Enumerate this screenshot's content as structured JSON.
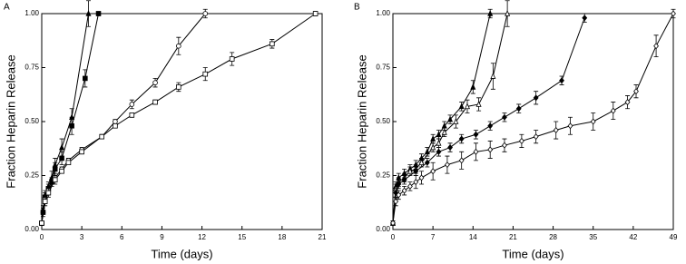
{
  "chart_data": [
    {
      "type": "line",
      "panel_label": "A",
      "x_label": "Time (days)",
      "y_label": "Fraction Heparin Release",
      "xlim": [
        0,
        21
      ],
      "xticks": [
        0,
        3,
        6,
        9,
        12,
        15,
        18,
        21
      ],
      "ylim": [
        0,
        1
      ],
      "yticks": [
        {
          "value": 0,
          "label": "0.00"
        },
        {
          "value": 0.25,
          "label": "0.25"
        },
        {
          "value": 0.5,
          "label": "0.50"
        },
        {
          "value": 0.75,
          "label": "0.75"
        },
        {
          "value": 1,
          "label": "1.00"
        }
      ],
      "series": [
        {
          "marker": "square-filled",
          "color": "#000000",
          "x": [
            0,
            0.1,
            0.25,
            0.5,
            0.75,
            1,
            1.5,
            2.25,
            3.25,
            4.25
          ],
          "values": [
            0.03,
            0.08,
            0.15,
            0.19,
            0.22,
            0.28,
            0.33,
            0.48,
            0.7,
            1.0
          ],
          "errors": [
            0.01,
            0.02,
            0.02,
            0.02,
            0.02,
            0.03,
            0.03,
            0.04,
            0.04,
            0.01
          ]
        },
        {
          "marker": "triangle-filled",
          "color": "#000000",
          "x": [
            0,
            0.1,
            0.25,
            0.5,
            0.75,
            1,
            1.5,
            2.25,
            3.5
          ],
          "values": [
            0.03,
            0.09,
            0.16,
            0.2,
            0.24,
            0.3,
            0.38,
            0.52,
            1.0
          ],
          "errors": [
            0.01,
            0.02,
            0.02,
            0.02,
            0.03,
            0.03,
            0.04,
            0.04,
            0.06
          ]
        },
        {
          "marker": "circle-open",
          "color": "#000000",
          "x": [
            0,
            0.25,
            0.5,
            1,
            1.5,
            2,
            3,
            4.5,
            5.5,
            6.75,
            8.5,
            10.25,
            12.25
          ],
          "values": [
            0.03,
            0.14,
            0.18,
            0.24,
            0.28,
            0.32,
            0.37,
            0.43,
            0.5,
            0.58,
            0.68,
            0.85,
            1.0
          ],
          "errors": [
            0.01,
            0.02,
            0.02,
            0.02,
            0.01,
            0.01,
            0.01,
            0.01,
            0.01,
            0.02,
            0.02,
            0.04,
            0.02
          ]
        },
        {
          "marker": "square-open",
          "color": "#000000",
          "x": [
            0,
            0.25,
            0.5,
            1,
            1.5,
            2,
            3,
            4.5,
            5.5,
            6.75,
            8.5,
            10.25,
            12.25,
            14.25,
            17.25,
            20.5
          ],
          "values": [
            0.03,
            0.13,
            0.17,
            0.23,
            0.27,
            0.31,
            0.36,
            0.43,
            0.48,
            0.53,
            0.59,
            0.66,
            0.72,
            0.79,
            0.86,
            1.0
          ],
          "errors": [
            0.01,
            0.02,
            0.02,
            0.02,
            0.01,
            0.01,
            0.01,
            0.01,
            0.01,
            0.01,
            0.01,
            0.02,
            0.03,
            0.03,
            0.02,
            0.01
          ]
        }
      ]
    },
    {
      "type": "line",
      "panel_label": "B",
      "x_label": "Time (days)",
      "y_label": "Fraction Heparin Release",
      "xlim": [
        0,
        49
      ],
      "xticks": [
        0,
        7,
        14,
        21,
        28,
        35,
        42,
        49
      ],
      "ylim": [
        0,
        1
      ],
      "yticks": [
        {
          "value": 0,
          "label": "0.00"
        },
        {
          "value": 0.25,
          "label": "0.25"
        },
        {
          "value": 0.5,
          "label": "0.50"
        },
        {
          "value": 0.75,
          "label": "0.75"
        },
        {
          "value": 1,
          "label": "1.00"
        }
      ],
      "series": [
        {
          "marker": "triangle-filled",
          "color": "#000000",
          "x": [
            0,
            0.5,
            1,
            2,
            3,
            4,
            5,
            6,
            7,
            8,
            9,
            10,
            12,
            14,
            17
          ],
          "values": [
            0.03,
            0.2,
            0.24,
            0.26,
            0.28,
            0.3,
            0.33,
            0.36,
            0.42,
            0.44,
            0.48,
            0.51,
            0.57,
            0.66,
            1.0
          ],
          "errors": [
            0.01,
            0.02,
            0.02,
            0.02,
            0.02,
            0.02,
            0.02,
            0.02,
            0.02,
            0.02,
            0.02,
            0.02,
            0.02,
            0.03,
            0.02
          ]
        },
        {
          "marker": "triangle-open",
          "color": "#000000",
          "x": [
            0,
            0.5,
            1,
            2,
            3,
            4,
            5,
            7,
            8,
            9,
            11,
            13,
            15,
            17.5,
            20
          ],
          "values": [
            0.03,
            0.19,
            0.22,
            0.24,
            0.27,
            0.28,
            0.31,
            0.38,
            0.4,
            0.45,
            0.5,
            0.57,
            0.58,
            0.71,
            1.0
          ],
          "errors": [
            0.01,
            0.02,
            0.02,
            0.02,
            0.02,
            0.02,
            0.02,
            0.02,
            0.02,
            0.02,
            0.03,
            0.03,
            0.03,
            0.06,
            0.06
          ]
        },
        {
          "marker": "diamond-filled",
          "color": "#000000",
          "x": [
            0,
            0.5,
            1,
            2,
            4,
            6,
            8,
            10,
            12,
            14.5,
            17,
            19.5,
            22,
            25,
            29.5,
            33.5
          ],
          "values": [
            0.03,
            0.17,
            0.21,
            0.23,
            0.27,
            0.31,
            0.36,
            0.38,
            0.42,
            0.44,
            0.48,
            0.52,
            0.56,
            0.61,
            0.69,
            0.98
          ],
          "errors": [
            0.01,
            0.02,
            0.02,
            0.02,
            0.02,
            0.02,
            0.02,
            0.02,
            0.02,
            0.02,
            0.02,
            0.02,
            0.02,
            0.03,
            0.02,
            0.02
          ]
        },
        {
          "marker": "diamond-open",
          "color": "#000000",
          "x": [
            0,
            0.5,
            1,
            2,
            3,
            4,
            5,
            7,
            9.5,
            12,
            14.5,
            17,
            19.5,
            22.5,
            25,
            28.5,
            31,
            35,
            38.5,
            41,
            42.5,
            46,
            49
          ],
          "values": [
            0.03,
            0.13,
            0.16,
            0.18,
            0.2,
            0.22,
            0.24,
            0.27,
            0.3,
            0.32,
            0.36,
            0.37,
            0.39,
            0.41,
            0.43,
            0.46,
            0.48,
            0.5,
            0.55,
            0.59,
            0.64,
            0.85,
            1.0
          ],
          "errors": [
            0.01,
            0.02,
            0.02,
            0.02,
            0.02,
            0.03,
            0.03,
            0.04,
            0.04,
            0.04,
            0.04,
            0.04,
            0.03,
            0.03,
            0.03,
            0.04,
            0.04,
            0.04,
            0.04,
            0.03,
            0.03,
            0.05,
            0.02
          ]
        }
      ]
    }
  ]
}
